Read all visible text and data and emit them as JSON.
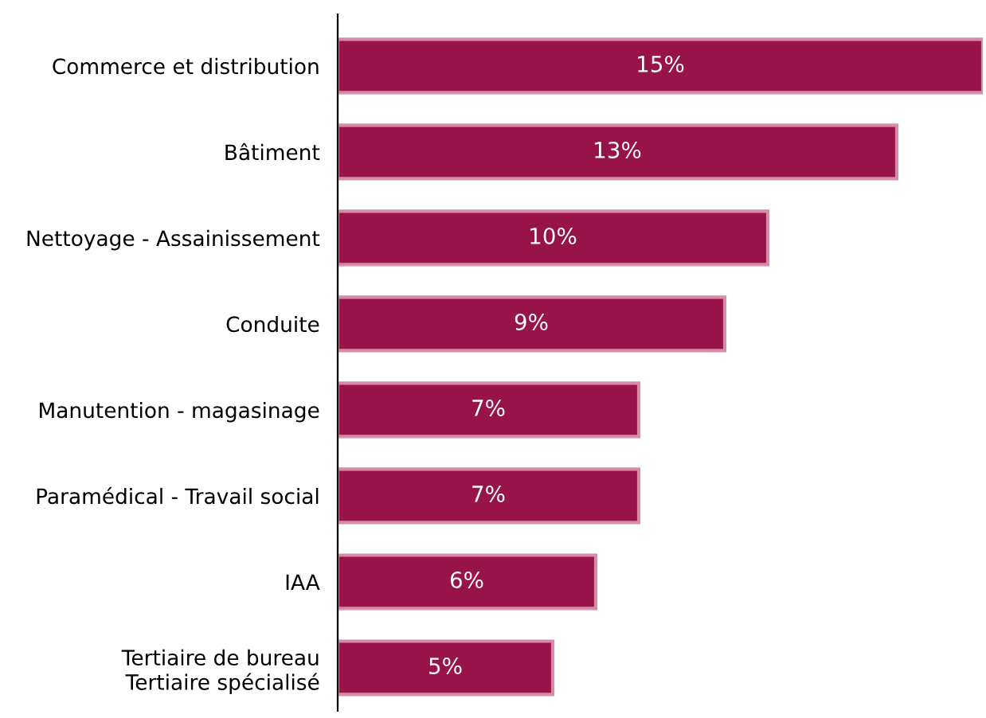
{
  "chart_data": {
    "type": "bar",
    "orientation": "horizontal",
    "categories": [
      "Commerce et distribution",
      "Bâtiment",
      "Nettoyage - Assainissement",
      "Conduite",
      "Manutention - magasinage",
      "Paramédical - Travail social",
      "IAA",
      "Tertiaire de bureau\nTertiaire spécialisé"
    ],
    "values": [
      15,
      13,
      10,
      9,
      7,
      7,
      6,
      5
    ],
    "value_labels": [
      "15%",
      "13%",
      "10%",
      "9%",
      "7%",
      "7%",
      "6%",
      "5%"
    ],
    "color": "#98134a",
    "grid": false,
    "legend": false
  }
}
